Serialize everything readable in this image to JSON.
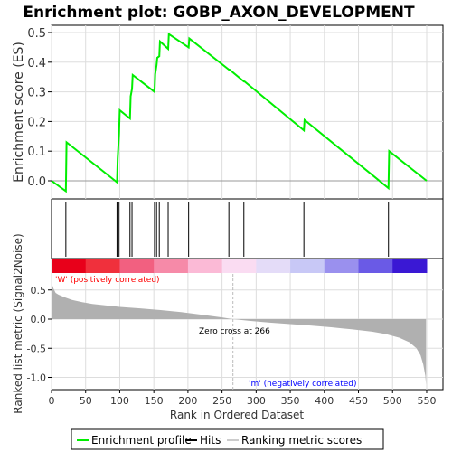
{
  "chart_data": {
    "type": "line",
    "title": "Enrichment plot: GOBP_AXON_DEVELOPMENT",
    "es_ylabel": "Enrichment score (ES)",
    "metric_ylabel": "Ranked list metric (Signal2Noise)",
    "xlabel": "Rank in Ordered Dataset",
    "xlim": [
      0,
      550
    ],
    "x_ticks": [
      "0",
      "50",
      "100",
      "150",
      "200",
      "250",
      "300",
      "350",
      "400",
      "450",
      "500",
      "550"
    ],
    "es_ylim": [
      -0.05,
      0.52
    ],
    "es_ticks": [
      "0.0",
      "0.1",
      "0.2",
      "0.3",
      "0.4",
      "0.5"
    ],
    "metric_ylim": [
      -1.15,
      0.7
    ],
    "metric_ticks": [
      "-1.0",
      "-0.5",
      "0.0",
      "0.5"
    ],
    "grid": true,
    "es_profile": {
      "x": [
        0,
        21,
        22,
        96,
        97,
        99,
        100,
        115,
        116,
        118,
        119,
        151,
        152,
        154,
        155,
        158,
        159,
        171,
        172,
        201,
        202,
        260,
        261,
        282,
        283,
        370,
        371,
        494,
        495,
        550
      ],
      "y": [
        0.0,
        -0.035,
        0.13,
        -0.005,
        0.075,
        0.16,
        0.238,
        0.21,
        0.285,
        0.31,
        0.357,
        0.3,
        0.36,
        0.39,
        0.415,
        0.42,
        0.47,
        0.445,
        0.495,
        0.45,
        0.48,
        0.375,
        0.375,
        0.335,
        0.335,
        0.17,
        0.205,
        -0.025,
        0.1,
        0.0
      ]
    },
    "hit_ranks": [
      21,
      96,
      99,
      115,
      118,
      151,
      154,
      158,
      171,
      201,
      260,
      282,
      370,
      494
    ],
    "metric_curve": {
      "x": [
        0,
        3,
        6,
        10,
        18,
        30,
        45,
        60,
        80,
        100,
        130,
        160,
        190,
        220,
        250,
        266,
        290,
        320,
        350,
        380,
        410,
        440,
        470,
        490,
        510,
        525,
        535,
        541,
        545,
        548,
        549
      ],
      "y": [
        0.62,
        0.52,
        0.45,
        0.42,
        0.38,
        0.33,
        0.29,
        0.26,
        0.235,
        0.21,
        0.185,
        0.155,
        0.12,
        0.075,
        0.03,
        0.0,
        -0.03,
        -0.06,
        -0.085,
        -0.11,
        -0.14,
        -0.175,
        -0.215,
        -0.255,
        -0.32,
        -0.4,
        -0.5,
        -0.62,
        -0.78,
        -0.97,
        -1.12
      ]
    },
    "zero_cross_rank": 266,
    "annotations": {
      "positive": "'W' (positively correlated)",
      "negative": "'m' (negatively correlated)",
      "zero_cross": "Zero cross at 266"
    },
    "colors": {
      "es_line": "#00ee00",
      "hit_line": "#000000",
      "zero_line": "#999999",
      "metric_fill": "#b0b0b0",
      "positive_text": "#ff0000",
      "negative_text": "#0000ff",
      "grid": "#dddddd"
    },
    "heatmap_colors": [
      "#e8001a",
      "#f0303c",
      "#f26080",
      "#f68aa8",
      "#fbbad6",
      "#fadcf2",
      "#e4dcf8",
      "#c8c8f6",
      "#9a90ee",
      "#6a5ae6",
      "#3a18d4"
    ],
    "legend": [
      {
        "label": "Enrichment profile",
        "color": "#00ee00",
        "style": "line"
      },
      {
        "label": "Hits",
        "color": "#000000",
        "style": "line"
      },
      {
        "label": "Ranking metric scores",
        "color": "#cccccc",
        "style": "line"
      }
    ],
    "legend_placement": "bottom"
  }
}
